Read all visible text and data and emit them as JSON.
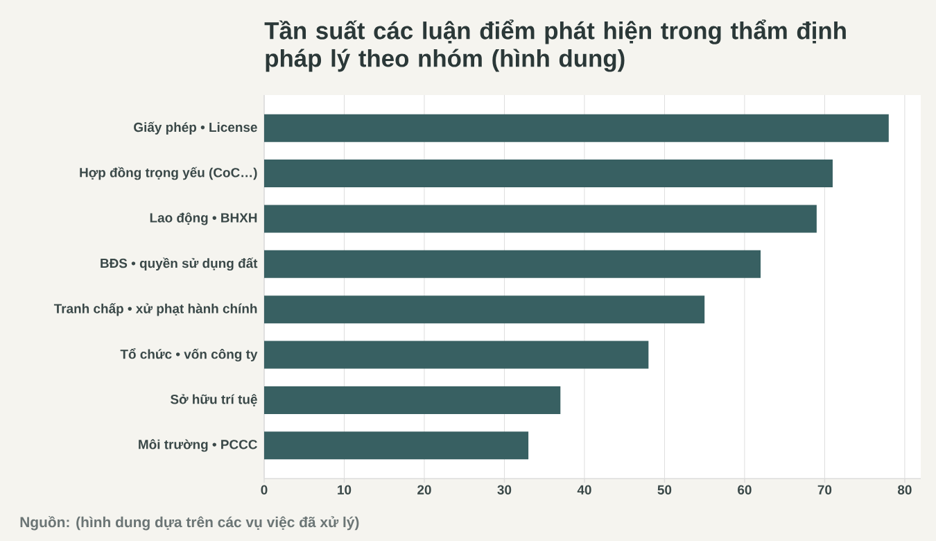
{
  "chart_data": {
    "type": "bar",
    "orientation": "horizontal",
    "title": "Tần suất các luận điểm phát hiện trong thẩm định pháp lý theo nhóm (hình dung)",
    "categories": [
      "Giấy phép • License",
      "Hợp đồng trọng yếu (CoC…)",
      "Lao động • BHXH",
      "BĐS • quyền sử dụng đất",
      "Tranh chấp • xử phạt hành chính",
      "Tổ chức • vốn công ty",
      "Sở hữu trí tuệ",
      "Môi trường • PCCC"
    ],
    "values": [
      78,
      71,
      69,
      62,
      55,
      48,
      37,
      33
    ],
    "color": "#386062",
    "xlim": [
      0,
      82
    ],
    "xticks": [
      0,
      10,
      20,
      30,
      40,
      50,
      60,
      70,
      80
    ],
    "grid": "x",
    "annotations": [
      "Nguồn: (hình dung dựa trên các vụ việc đã xử lý)"
    ]
  }
}
